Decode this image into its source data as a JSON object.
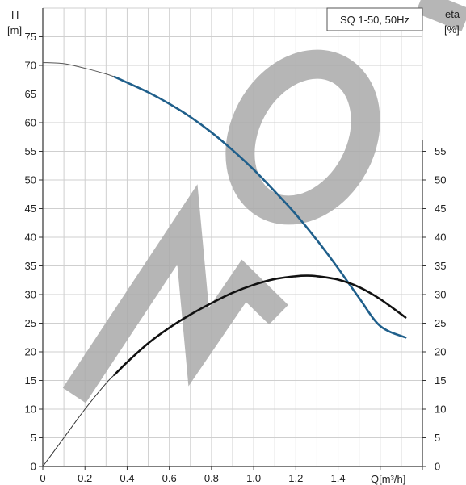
{
  "chart_data": {
    "type": "line",
    "title": "SQ 1-50, 50Hz",
    "xlabel": "Q[m³/h]",
    "y_left": {
      "label": "H",
      "unit": "[m]",
      "range": [
        0,
        80
      ],
      "ticks": [
        0,
        5,
        10,
        15,
        20,
        25,
        30,
        35,
        40,
        45,
        50,
        55,
        60,
        65,
        70,
        75
      ]
    },
    "y_right": {
      "label": "eta",
      "unit": "[%]",
      "range": [
        0,
        80
      ],
      "ticks": [
        0,
        5,
        10,
        15,
        20,
        25,
        30,
        35,
        40,
        45,
        50,
        55
      ]
    },
    "x_range": [
      0,
      1.8
    ],
    "x_ticks": [
      "0",
      "0.2",
      "0.4",
      "0.6",
      "0.8",
      "1.0",
      "1.2",
      "1.4"
    ],
    "grid": true,
    "series": [
      {
        "axis": "left",
        "color": "#1f5f8b",
        "dashed_until": 0.34,
        "x": [
          0,
          0.1,
          0.2,
          0.3,
          0.34,
          0.4,
          0.5,
          0.6,
          0.7,
          0.8,
          0.9,
          1.0,
          1.1,
          1.2,
          1.3,
          1.4,
          1.5,
          1.6,
          1.72
        ],
        "y": [
          70.5,
          70.3,
          69.5,
          68.5,
          68.0,
          67.0,
          65.3,
          63.3,
          61.0,
          58.3,
          55.2,
          51.8,
          48.0,
          44.0,
          39.5,
          34.6,
          29.4,
          24.5,
          22.5
        ]
      },
      {
        "axis": "right",
        "color": "#111111",
        "dashed_until": 0.34,
        "x": [
          0,
          0.1,
          0.2,
          0.3,
          0.34,
          0.4,
          0.5,
          0.6,
          0.7,
          0.8,
          0.9,
          1.0,
          1.1,
          1.2,
          1.25,
          1.3,
          1.4,
          1.5,
          1.6,
          1.72
        ],
        "y": [
          0,
          5.0,
          10.0,
          14.5,
          16.0,
          18.2,
          21.5,
          24.2,
          26.5,
          28.5,
          30.3,
          31.7,
          32.7,
          33.2,
          33.3,
          33.2,
          32.6,
          31.3,
          29.2,
          26.0
        ]
      }
    ]
  },
  "colors": {
    "grid": "#cfcfcf",
    "axis": "#333333",
    "watermark": "#a9a9a9"
  },
  "watermark": {
    "text": "MO"
  }
}
